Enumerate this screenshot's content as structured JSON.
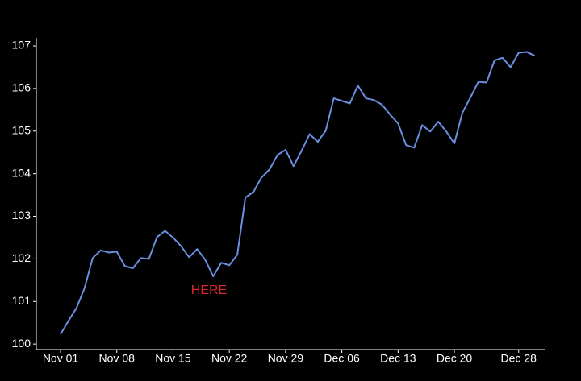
{
  "chart_data": {
    "type": "line",
    "categories": [
      "Nov 01",
      null,
      null,
      null,
      null,
      null,
      null,
      "Nov 08",
      null,
      null,
      null,
      null,
      null,
      null,
      "Nov 15",
      null,
      null,
      null,
      null,
      null,
      null,
      "Nov 22",
      null,
      null,
      null,
      null,
      null,
      null,
      "Nov 29",
      null,
      null,
      null,
      null,
      null,
      null,
      "Dec 06",
      null,
      null,
      null,
      null,
      null,
      null,
      "Dec 13",
      null,
      null,
      null,
      null,
      null,
      null,
      "Dec 20",
      null,
      null,
      null,
      null,
      null,
      null,
      null,
      "Dec 28",
      null,
      null
    ],
    "series": [
      {
        "color": "#6b8fe0",
        "values": [
          100.23,
          100.55,
          100.85,
          101.32,
          102.02,
          102.2,
          102.15,
          102.17,
          101.83,
          101.78,
          102.02,
          102.0,
          102.51,
          102.66,
          102.5,
          102.3,
          102.04,
          102.23,
          101.98,
          101.59,
          101.91,
          101.85,
          102.1,
          103.44,
          103.57,
          103.91,
          104.1,
          104.44,
          104.56,
          104.18,
          104.54,
          104.93,
          104.75,
          105.01,
          105.77,
          105.71,
          105.65,
          106.07,
          105.77,
          105.73,
          105.62,
          105.39,
          105.18,
          104.67,
          104.61,
          105.14,
          104.99,
          105.22,
          104.99,
          104.71,
          105.43,
          105.79,
          106.16,
          106.14,
          106.66,
          106.72,
          106.5,
          106.84,
          106.86,
          106.77
        ]
      }
    ],
    "ylim": [
      99.87,
      107.19
    ],
    "yticks": [
      100,
      101,
      102,
      103,
      104,
      105,
      106,
      107
    ],
    "annotations": [
      {
        "text": "HERE",
        "color": "#d9262c"
      }
    ]
  }
}
